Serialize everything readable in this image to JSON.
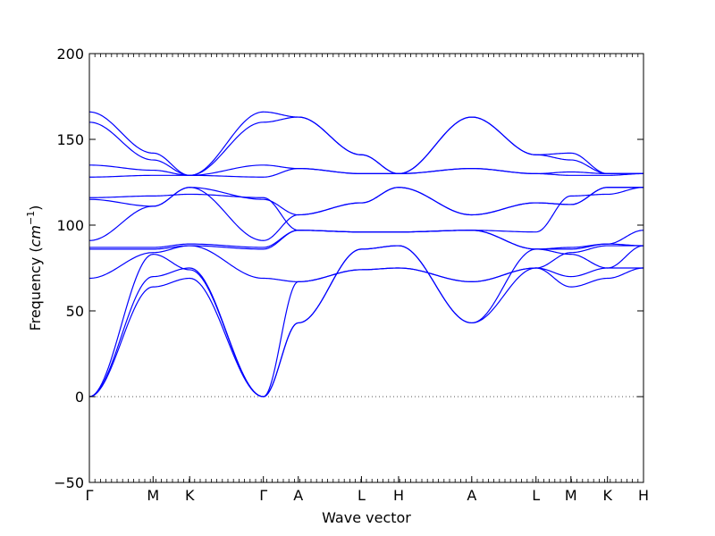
{
  "chart_data": {
    "type": "line",
    "xlabel": "Wave vector",
    "ylabel": "Frequency",
    "ylabel_unit": "cm",
    "ylabel_unit_exp": "−1",
    "ylim": [
      -50,
      200
    ],
    "yticks": [
      -50,
      0,
      50,
      100,
      150,
      200
    ],
    "zero_line": true,
    "grid": false,
    "line_color": "#0000ff",
    "kpath": [
      {
        "label": "Γ",
        "x": 0.0
      },
      {
        "label": "M",
        "x": 0.115
      },
      {
        "label": "K",
        "x": 0.181
      },
      {
        "label": "Γ",
        "x": 0.314
      },
      {
        "label": "A",
        "x": 0.377
      },
      {
        "label": "L",
        "x": 0.491
      },
      {
        "label": "H",
        "x": 0.558
      },
      {
        "label": "A",
        "x": 0.69
      },
      {
        "label": "L",
        "x": 0.806
      },
      {
        "label": "M",
        "x": 0.869
      },
      {
        "label": "K",
        "x": 0.935
      },
      {
        "label": "H",
        "x": 1.0
      }
    ],
    "series": [
      {
        "values": [
          0,
          64,
          69,
          0,
          43,
          86,
          88,
          43,
          75,
          64,
          69,
          75
        ]
      },
      {
        "values": [
          0,
          70,
          75,
          0,
          67,
          74,
          75,
          67,
          75,
          70,
          75,
          75
        ]
      },
      {
        "values": [
          0,
          83,
          74,
          0,
          43,
          86,
          88,
          43,
          86,
          83,
          75,
          88
        ]
      },
      {
        "values": [
          69,
          84,
          88,
          69,
          67,
          74,
          75,
          67,
          75,
          84,
          88,
          88
        ]
      },
      {
        "values": [
          86,
          86,
          88,
          86,
          97,
          96,
          96,
          97,
          86,
          86,
          89,
          88
        ]
      },
      {
        "values": [
          87,
          87,
          89,
          87,
          97,
          96,
          96,
          97,
          86,
          87,
          89,
          97
        ]
      },
      {
        "values": [
          91,
          111,
          122,
          91,
          106,
          113,
          122,
          106,
          113,
          112,
          122,
          122
        ]
      },
      {
        "values": [
          115,
          111,
          122,
          115,
          106,
          113,
          122,
          106,
          113,
          112,
          122,
          122
        ]
      },
      {
        "values": [
          116,
          117,
          118,
          116,
          97,
          96,
          96,
          97,
          96,
          117,
          118,
          122
        ]
      },
      {
        "values": [
          128,
          129,
          129,
          128,
          133,
          130,
          130,
          133,
          130,
          129,
          129,
          130
        ]
      },
      {
        "values": [
          135,
          132,
          129,
          135,
          133,
          130,
          130,
          133,
          130,
          131,
          130,
          130
        ]
      },
      {
        "values": [
          160,
          138,
          129,
          160,
          163,
          141,
          130,
          163,
          141,
          138,
          130,
          130
        ]
      },
      {
        "values": [
          166,
          142,
          129,
          166,
          163,
          141,
          130,
          163,
          141,
          142,
          130,
          130
        ]
      }
    ]
  }
}
